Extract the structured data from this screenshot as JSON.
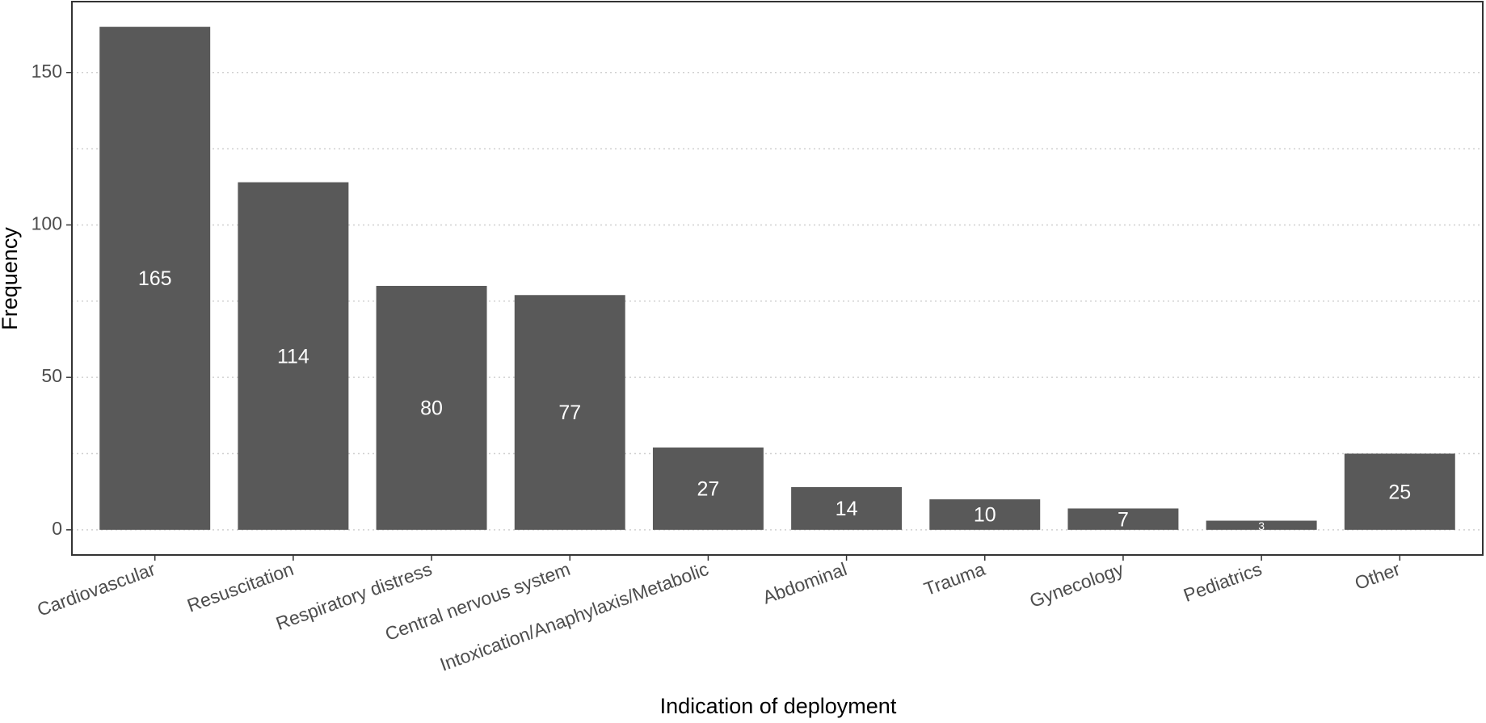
{
  "chart_data": {
    "type": "bar",
    "x_label": "Indication of deployment",
    "y_label": "Frequency",
    "categories": [
      "Cardiovascular",
      "Resuscitation",
      "Respiratory distress",
      "Central nervous system",
      "Intoxication/Anaphylaxis/Metabolic",
      "Abdominal",
      "Trauma",
      "Gynecology",
      "Pediatrics",
      "Other"
    ],
    "values": [
      165,
      114,
      80,
      77,
      27,
      14,
      10,
      7,
      3,
      25
    ],
    "color": "#595959",
    "ylim": [
      -8.25,
      173.25
    ],
    "yticks": [
      0,
      50,
      100,
      150
    ],
    "minor_yticks": [
      25,
      75,
      125
    ],
    "grid": true
  }
}
